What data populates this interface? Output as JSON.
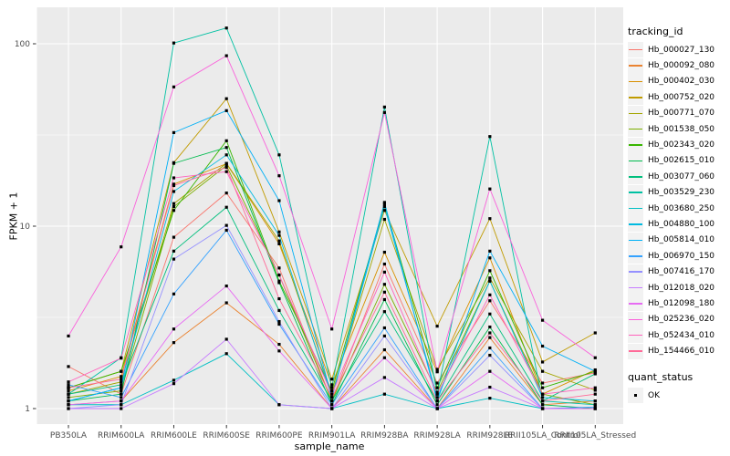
{
  "figure": {
    "background": "#FFFFFF",
    "panel_background": "#EBEBEB",
    "grid_color": "#FFFFFF",
    "tick_label_color": "#4D4D4D",
    "axis_title_color": "#000000",
    "point_color": "#000000"
  },
  "chart_data": {
    "type": "line",
    "title": "",
    "xlabel": "sample_name",
    "ylabel": "FPKM + 1",
    "y_scale": "log10",
    "y_ticks": [
      1,
      10,
      100
    ],
    "ylim": [
      0.82,
      158
    ],
    "grid": "on",
    "legend_position": "right",
    "point_shape": "square",
    "categories": [
      "PB350LA",
      "RRIM600LA",
      "RRIM600LE",
      "RRIM600SE",
      "RRIM600PE",
      "RRIM901LA",
      "RRIM928BA",
      "RRIM928LA",
      "RRIM928LE",
      "RRII105LA_Control",
      "RRII105LA_Stressed"
    ],
    "series": [
      {
        "name": "Hb_000027_130",
        "color": "#F8766D",
        "values": [
          1.7,
          1.2,
          8.7,
          15.2,
          5.9,
          1.1,
          6.2,
          1.38,
          3.9,
          1.38,
          1.57
        ]
      },
      {
        "name": "Hb_000092_080",
        "color": "#EA8331",
        "values": [
          1.05,
          1.1,
          2.3,
          3.8,
          2.25,
          1.0,
          2.1,
          1.0,
          2.45,
          1.05,
          1.1
        ]
      },
      {
        "name": "Hb_000402_030",
        "color": "#D89000",
        "values": [
          1.25,
          1.5,
          17.0,
          22.0,
          8.0,
          1.35,
          7.2,
          1.59,
          6.7,
          1.2,
          1.63
        ]
      },
      {
        "name": "Hb_000752_020",
        "color": "#C09B00",
        "values": [
          1.3,
          1.6,
          22.3,
          50,
          9.3,
          1.45,
          12.2,
          2.83,
          11.0,
          1.8,
          2.6
        ]
      },
      {
        "name": "Hb_000771_070",
        "color": "#A3A500",
        "values": [
          1.2,
          1.4,
          13.3,
          22.1,
          8.3,
          1.2,
          10.9,
          1.64,
          5.2,
          1.6,
          1.26
        ]
      },
      {
        "name": "Hb_001538_050",
        "color": "#7CAE00",
        "values": [
          1.15,
          1.25,
          12.8,
          21.5,
          5.4,
          1.1,
          4.8,
          1.23,
          5.0,
          1.2,
          1.05
        ]
      },
      {
        "name": "Hb_002343_020",
        "color": "#39B600",
        "values": [
          1.3,
          1.6,
          12.2,
          29.4,
          5.0,
          1.25,
          13.2,
          1.3,
          5.7,
          1.3,
          1.6
        ]
      },
      {
        "name": "Hb_002615_010",
        "color": "#00BB4E",
        "values": [
          1.1,
          1.2,
          22.1,
          27.0,
          4.9,
          1.05,
          3.96,
          1.05,
          2.8,
          1.05,
          1.0
        ]
      },
      {
        "name": "Hb_003077_060",
        "color": "#00BF7D",
        "values": [
          1.2,
          1.35,
          7.3,
          12.7,
          3.45,
          1.1,
          3.4,
          1.1,
          3.3,
          1.1,
          1.55
        ]
      },
      {
        "name": "Hb_003529_230",
        "color": "#00C1A3",
        "values": [
          1.2,
          1.9,
          101,
          122,
          24.6,
          1.3,
          45,
          1.2,
          31,
          1.1,
          1.05
        ]
      },
      {
        "name": "Hb_003680_250",
        "color": "#00BFC4",
        "values": [
          1.05,
          1.05,
          1.43,
          2.0,
          1.05,
          1.0,
          1.2,
          1.0,
          1.14,
          1.0,
          1.0
        ]
      },
      {
        "name": "Hb_004880_100",
        "color": "#00BAE0",
        "values": [
          1.1,
          1.3,
          15.5,
          24.6,
          8.9,
          1.15,
          12.8,
          1.15,
          5.0,
          1.15,
          1.1
        ]
      },
      {
        "name": "Hb_005814_010",
        "color": "#00B0F6",
        "values": [
          1.1,
          1.3,
          32.6,
          43,
          13.8,
          1.15,
          13.5,
          1.1,
          7.3,
          2.2,
          1.6
        ]
      },
      {
        "name": "Hb_006970_150",
        "color": "#35A2FF",
        "values": [
          1.35,
          1.15,
          4.25,
          9.5,
          2.9,
          1.05,
          2.77,
          1.0,
          2.15,
          1.0,
          1.02
        ]
      },
      {
        "name": "Hb_007416_170",
        "color": "#9590FF",
        "values": [
          1.0,
          1.05,
          6.6,
          10.1,
          3.0,
          1.0,
          2.5,
          1.0,
          1.96,
          1.0,
          1.0
        ]
      },
      {
        "name": "Hb_012018_020",
        "color": "#C77CFF",
        "values": [
          1.0,
          1.0,
          1.37,
          2.4,
          1.05,
          1.0,
          1.48,
          1.0,
          1.31,
          1.0,
          1.0
        ]
      },
      {
        "name": "Hb_012098_180",
        "color": "#E76BF3",
        "values": [
          1.05,
          1.1,
          2.73,
          4.7,
          2.07,
          1.0,
          1.9,
          1.0,
          1.6,
          1.0,
          1.0
        ]
      },
      {
        "name": "Hb_025236_020",
        "color": "#FA62DB",
        "values": [
          2.5,
          7.7,
          58,
          86,
          18.9,
          2.73,
          42,
          1.6,
          16,
          3.05,
          1.9
        ]
      },
      {
        "name": "Hb_052434_010",
        "color": "#FF62BC",
        "values": [
          1.4,
          1.89,
          18.4,
          19.9,
          5.4,
          1.2,
          5.6,
          1.2,
          4.2,
          1.2,
          1.3
        ]
      },
      {
        "name": "Hb_154466_010",
        "color": "#FF6A98",
        "values": [
          1.3,
          1.45,
          16.7,
          21.0,
          4.0,
          1.15,
          4.35,
          1.1,
          2.6,
          1.1,
          1.2
        ]
      }
    ],
    "legend": {
      "color_title": "tracking_id",
      "shape_title": "quant_status",
      "shape_items": [
        {
          "label": "OK"
        }
      ]
    }
  }
}
